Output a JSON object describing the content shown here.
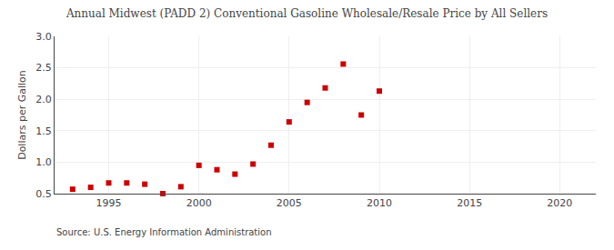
{
  "chart_data": {
    "type": "scatter",
    "title": "Annual Midwest (PADD 2) Conventional Gasoline Wholesale/Resale Price by All Sellers",
    "ylabel": "Dollars per Gallon",
    "annotations": [
      "Source: U.S. Energy Information Administration"
    ],
    "x": [
      1993,
      1994,
      1995,
      1996,
      1997,
      1998,
      1999,
      2000,
      2001,
      2002,
      2003,
      2004,
      2005,
      2006,
      2007,
      2008,
      2009,
      2010
    ],
    "values": [
      0.57,
      0.6,
      0.67,
      0.67,
      0.65,
      0.5,
      0.61,
      0.95,
      0.88,
      0.81,
      0.97,
      1.27,
      1.64,
      1.95,
      2.18,
      2.56,
      1.75,
      2.13
    ],
    "color": "#cc0000",
    "marker": "square",
    "xlim": [
      1992,
      2022
    ],
    "ylim": [
      0.5,
      3.0
    ],
    "xticks": [
      1995,
      2000,
      2005,
      2010,
      2015,
      2020
    ],
    "yticks": [
      0.5,
      {
        "value": 1,
        "label": "1.0"
      },
      1.5,
      {
        "value": 2,
        "label": "2.0"
      },
      2.5,
      {
        "value": 3,
        "label": "3.0"
      }
    ],
    "grid": true
  }
}
